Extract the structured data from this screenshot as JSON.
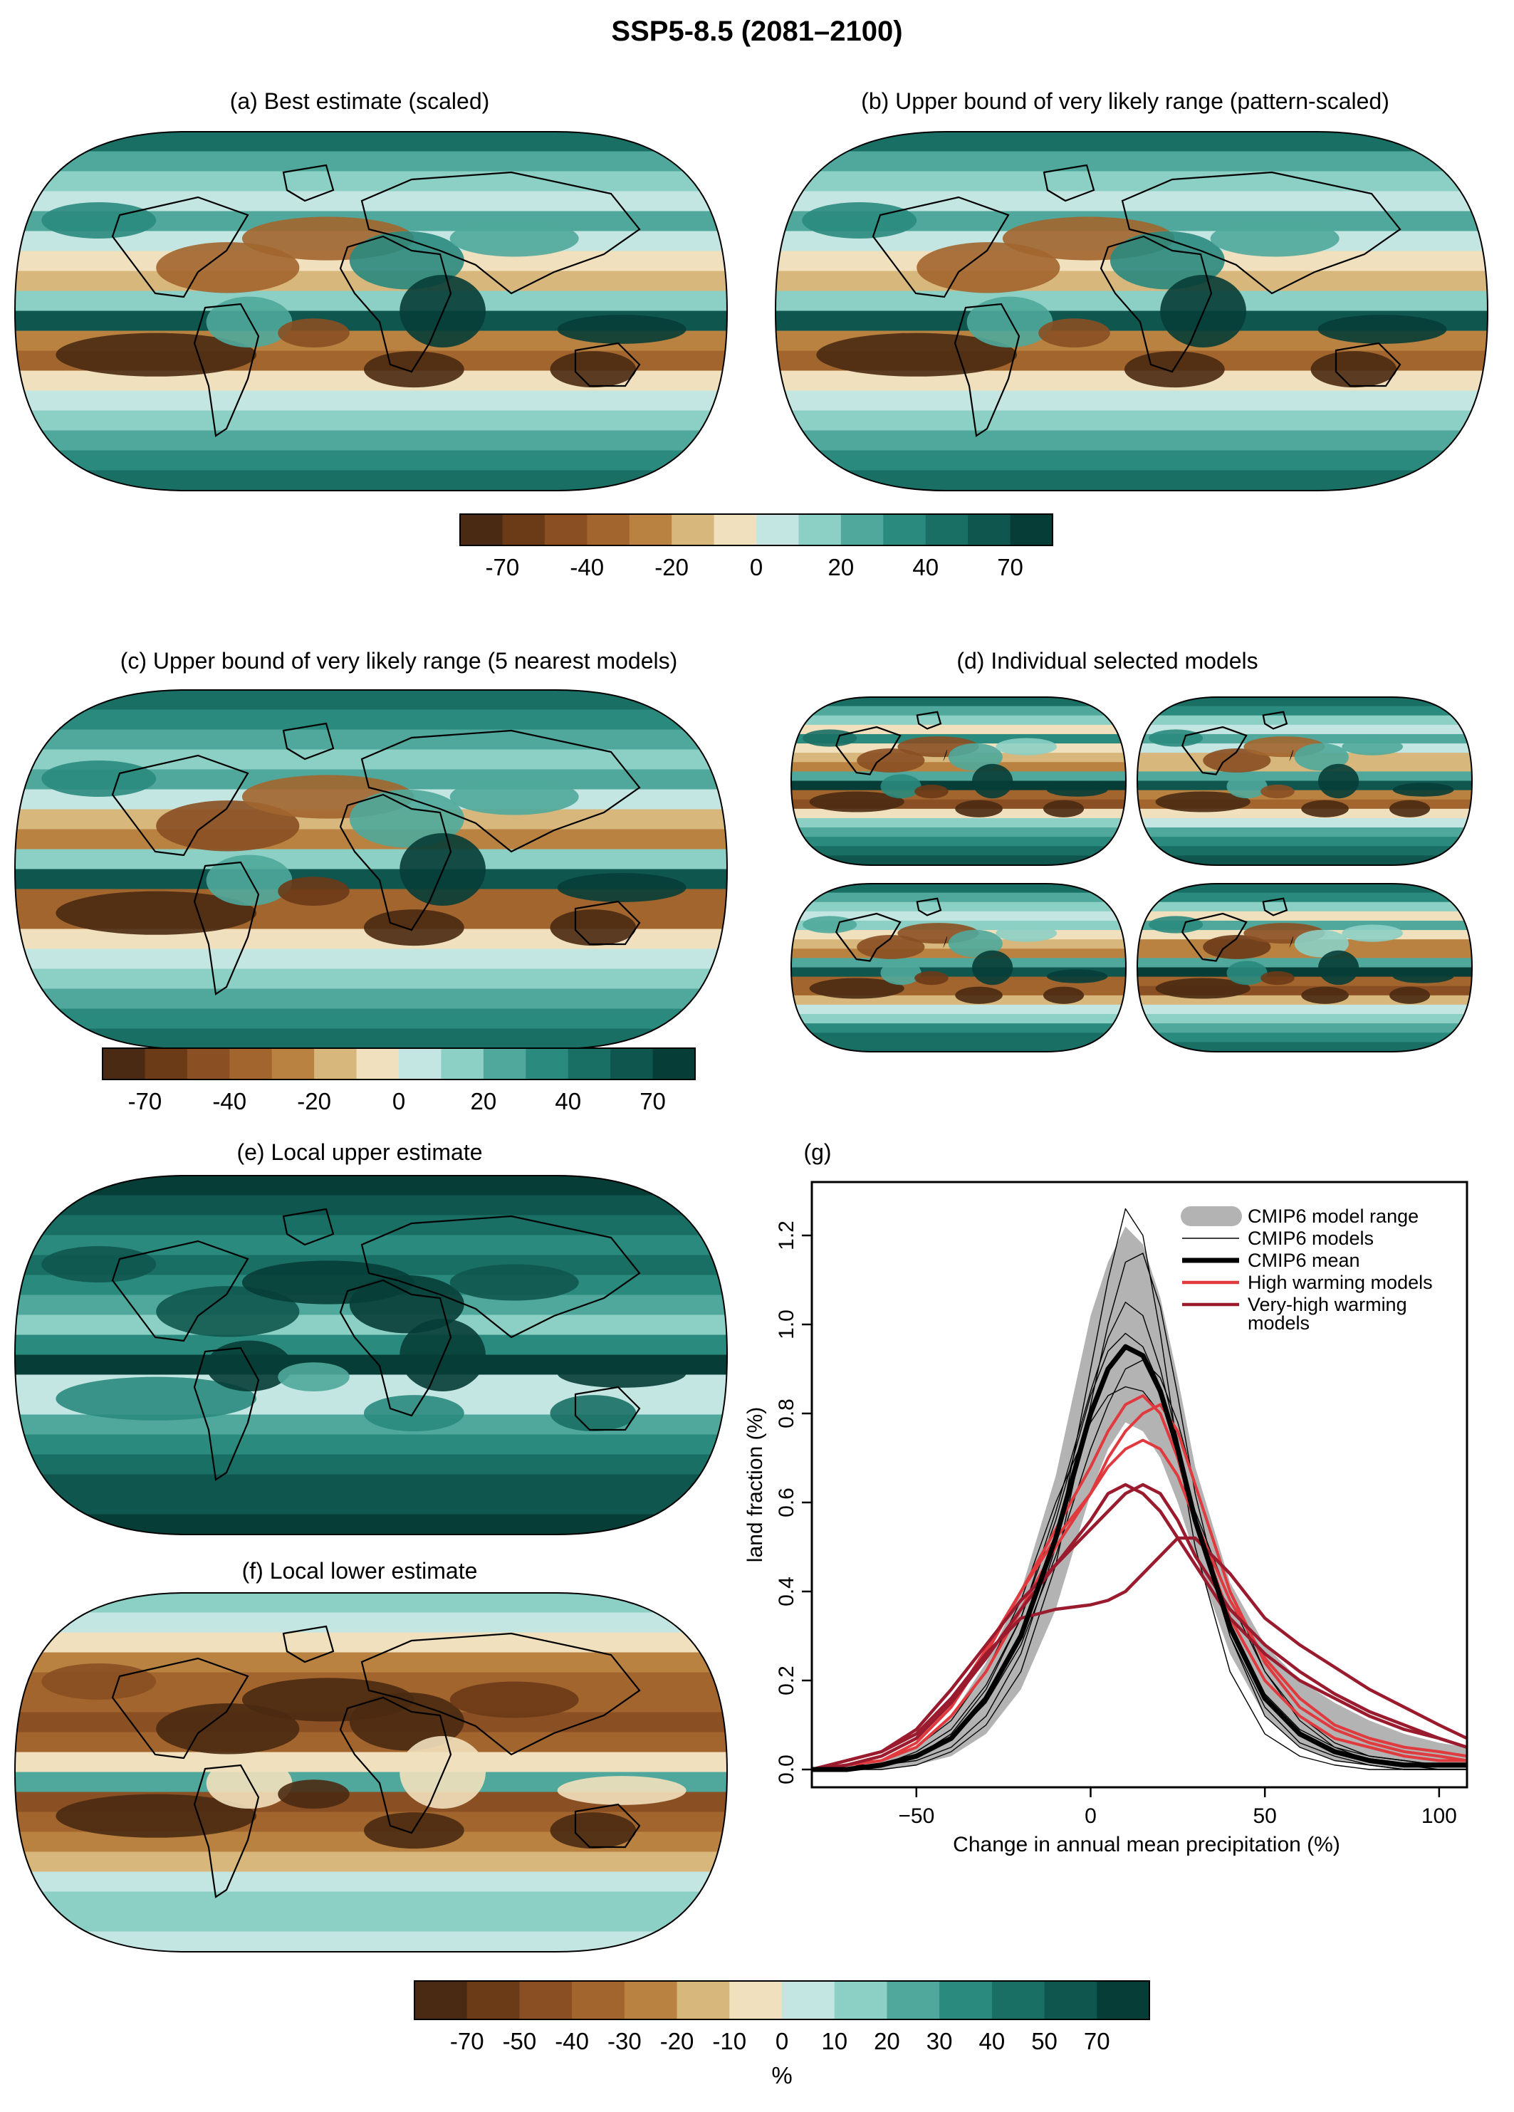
{
  "figure_title": "SSP5-8.5 (2081–2100)",
  "panels": {
    "a": "(a)  Best estimate (scaled)",
    "b": "(b)  Upper bound of very likely range (pattern-scaled)",
    "c": "(c) Upper bound of very likely range (5 nearest models)",
    "d": "(d)  Individual selected models",
    "e": "(e) Local upper estimate",
    "f": "(f) Local lower estimate",
    "g": "(g)"
  },
  "palette": [
    "#4a2a12",
    "#6b3a17",
    "#8a4f22",
    "#a2652e",
    "#b98241",
    "#d7b77c",
    "#f1e0bd",
    "#c4e6e2",
    "#8ccfc4",
    "#4fa89b",
    "#2a8a7e",
    "#1a6f65",
    "#0f564f",
    "#073d37"
  ],
  "colorbar_small": {
    "ticks": [
      "-70",
      "-40",
      "-20",
      "0",
      "20",
      "40",
      "70"
    ],
    "tick_index": [
      1,
      3,
      5,
      7,
      9,
      11,
      13
    ]
  },
  "colorbar_main": {
    "ticks": [
      "-70",
      "-50",
      "-40",
      "-30",
      "-20",
      "-10",
      "0",
      "10",
      "20",
      "30",
      "40",
      "50",
      "70"
    ],
    "tick_index": [
      1,
      2,
      3,
      4,
      5,
      6,
      7,
      8,
      9,
      10,
      11,
      12,
      13
    ],
    "unit": "%"
  },
  "chart_data": {
    "type": "line",
    "title": "(g)",
    "xlabel": "Change in annual mean precipitation (%)",
    "ylabel": "land fraction (%)",
    "xlim": [
      -80,
      108
    ],
    "ylim": [
      -0.04,
      1.32
    ],
    "xticks": [
      -50,
      0,
      50,
      100
    ],
    "yticks": [
      0.0,
      0.2,
      0.4,
      0.6,
      0.8,
      1.0,
      1.2
    ],
    "legend": {
      "placement": "top-right",
      "entries": [
        {
          "label": "CMIP6 model range",
          "color": "#b3b3b3",
          "style": "band"
        },
        {
          "label": "CMIP6 models",
          "color": "#000000",
          "style": "thin"
        },
        {
          "label": "CMIP6 mean",
          "color": "#000000",
          "style": "thick"
        },
        {
          "label": "High warming models",
          "color": "#e03a3e",
          "style": "line"
        },
        {
          "label": "Very-high warming models",
          "color": "#9b1b2e",
          "style": "line"
        }
      ]
    },
    "x": [
      -80,
      -70,
      -60,
      -50,
      -40,
      -30,
      -20,
      -10,
      0,
      5,
      10,
      15,
      20,
      25,
      30,
      40,
      50,
      60,
      70,
      80,
      90,
      100,
      108
    ],
    "range_low": [
      0.0,
      0.0,
      0.0,
      0.01,
      0.03,
      0.08,
      0.18,
      0.36,
      0.62,
      0.72,
      0.78,
      0.76,
      0.7,
      0.6,
      0.48,
      0.26,
      0.12,
      0.05,
      0.02,
      0.01,
      0.0,
      0.0,
      0.0
    ],
    "range_high": [
      0.0,
      0.01,
      0.02,
      0.05,
      0.12,
      0.24,
      0.4,
      0.66,
      1.02,
      1.14,
      1.22,
      1.18,
      1.06,
      0.88,
      0.68,
      0.42,
      0.28,
      0.2,
      0.15,
      0.11,
      0.08,
      0.06,
      0.05
    ],
    "series": [
      {
        "name": "CMIP6 mean",
        "color": "#000000",
        "width": 7,
        "values": [
          0.0,
          0.0,
          0.01,
          0.03,
          0.07,
          0.16,
          0.3,
          0.52,
          0.8,
          0.9,
          0.95,
          0.93,
          0.85,
          0.72,
          0.56,
          0.32,
          0.16,
          0.08,
          0.04,
          0.02,
          0.01,
          0.01,
          0.01
        ]
      },
      {
        "color": "#000000",
        "width": 1.4,
        "values": [
          0.0,
          0.0,
          0.01,
          0.02,
          0.05,
          0.12,
          0.26,
          0.5,
          0.9,
          1.1,
          1.26,
          1.2,
          0.98,
          0.72,
          0.5,
          0.22,
          0.08,
          0.03,
          0.01,
          0.0,
          0.0,
          0.0,
          0.0
        ]
      },
      {
        "color": "#000000",
        "width": 1.4,
        "values": [
          0.0,
          0.0,
          0.01,
          0.03,
          0.08,
          0.18,
          0.34,
          0.58,
          0.85,
          0.97,
          1.05,
          1.02,
          0.9,
          0.74,
          0.56,
          0.3,
          0.14,
          0.06,
          0.03,
          0.01,
          0.0,
          0.0,
          0.0
        ]
      },
      {
        "color": "#000000",
        "width": 1.4,
        "values": [
          0.0,
          0.01,
          0.02,
          0.05,
          0.11,
          0.22,
          0.38,
          0.6,
          0.78,
          0.84,
          0.86,
          0.85,
          0.8,
          0.7,
          0.58,
          0.38,
          0.22,
          0.12,
          0.06,
          0.03,
          0.02,
          0.01,
          0.01
        ]
      },
      {
        "color": "#000000",
        "width": 1.4,
        "values": [
          0.0,
          0.0,
          0.0,
          0.01,
          0.04,
          0.1,
          0.22,
          0.46,
          0.82,
          1.0,
          1.14,
          1.16,
          1.04,
          0.84,
          0.62,
          0.3,
          0.12,
          0.05,
          0.02,
          0.01,
          0.0,
          0.0,
          0.0
        ]
      },
      {
        "color": "#000000",
        "width": 1.4,
        "values": [
          0.0,
          0.0,
          0.01,
          0.03,
          0.07,
          0.15,
          0.28,
          0.48,
          0.72,
          0.82,
          0.9,
          0.92,
          0.88,
          0.78,
          0.64,
          0.4,
          0.22,
          0.11,
          0.05,
          0.02,
          0.01,
          0.0,
          0.0
        ]
      },
      {
        "color": "#000000",
        "width": 1.4,
        "values": [
          0.0,
          0.01,
          0.01,
          0.04,
          0.09,
          0.19,
          0.34,
          0.56,
          0.84,
          0.94,
          0.98,
          0.95,
          0.86,
          0.72,
          0.56,
          0.33,
          0.17,
          0.09,
          0.05,
          0.03,
          0.02,
          0.01,
          0.01
        ]
      },
      {
        "color": "#e03a3e",
        "width": 4,
        "values": [
          0.0,
          0.01,
          0.02,
          0.06,
          0.14,
          0.26,
          0.4,
          0.54,
          0.68,
          0.76,
          0.82,
          0.84,
          0.8,
          0.7,
          0.56,
          0.34,
          0.2,
          0.12,
          0.07,
          0.05,
          0.03,
          0.02,
          0.02
        ]
      },
      {
        "color": "#e03a3e",
        "width": 4,
        "values": [
          0.0,
          0.01,
          0.02,
          0.05,
          0.12,
          0.22,
          0.36,
          0.5,
          0.62,
          0.7,
          0.76,
          0.8,
          0.82,
          0.76,
          0.64,
          0.4,
          0.24,
          0.14,
          0.09,
          0.06,
          0.04,
          0.03,
          0.02
        ]
      },
      {
        "color": "#e03a3e",
        "width": 4,
        "values": [
          0.0,
          0.01,
          0.03,
          0.07,
          0.15,
          0.27,
          0.4,
          0.52,
          0.62,
          0.68,
          0.72,
          0.74,
          0.72,
          0.66,
          0.56,
          0.38,
          0.25,
          0.16,
          0.1,
          0.07,
          0.05,
          0.04,
          0.03
        ]
      },
      {
        "color": "#9b1b2e",
        "width": 4.5,
        "values": [
          0.0,
          0.02,
          0.04,
          0.09,
          0.18,
          0.28,
          0.38,
          0.46,
          0.54,
          0.58,
          0.62,
          0.64,
          0.62,
          0.56,
          0.48,
          0.36,
          0.28,
          0.22,
          0.17,
          0.13,
          0.1,
          0.07,
          0.05
        ]
      },
      {
        "color": "#9b1b2e",
        "width": 4.5,
        "values": [
          0.0,
          0.02,
          0.04,
          0.08,
          0.16,
          0.26,
          0.34,
          0.36,
          0.37,
          0.38,
          0.4,
          0.44,
          0.48,
          0.52,
          0.52,
          0.44,
          0.34,
          0.28,
          0.23,
          0.18,
          0.14,
          0.1,
          0.07
        ]
      },
      {
        "color": "#9b1b2e",
        "width": 4.5,
        "values": [
          0.0,
          0.01,
          0.03,
          0.07,
          0.15,
          0.25,
          0.36,
          0.46,
          0.56,
          0.62,
          0.64,
          0.62,
          0.58,
          0.52,
          0.46,
          0.34,
          0.26,
          0.2,
          0.16,
          0.12,
          0.09,
          0.07,
          0.05
        ]
      }
    ]
  }
}
